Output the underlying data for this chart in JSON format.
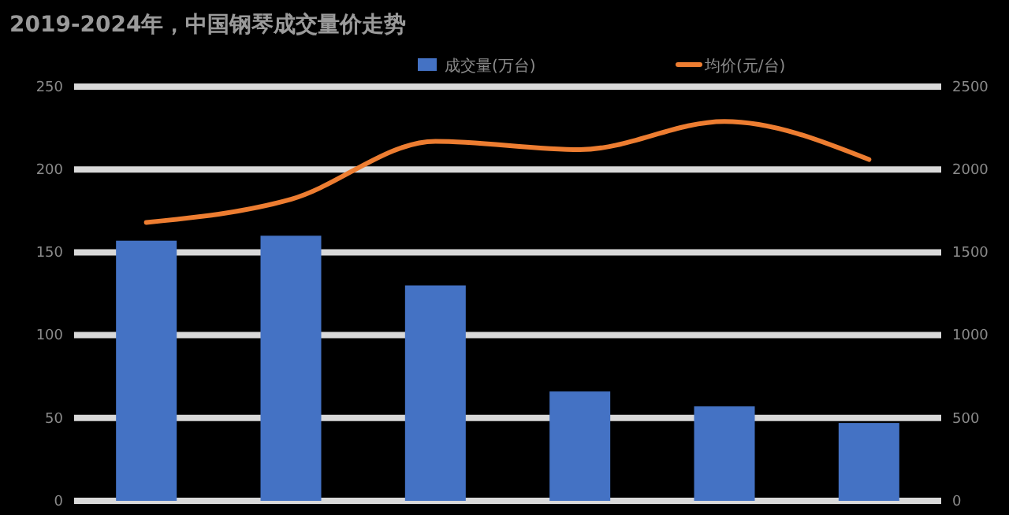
{
  "chart_data": {
    "type": "bar",
    "title": "2019-2024年，中国钢琴成交量价走势",
    "categories": [
      null,
      null,
      null,
      null,
      null,
      null
    ],
    "series": [
      {
        "name": "成交量(万台)",
        "color": "#4472c4",
        "values": [
          157,
          160,
          130,
          66,
          57,
          47
        ]
      },
      {
        "name": "均价(元/台)",
        "type": "line",
        "axis": "y2",
        "color": "#ed7d31",
        "values": [
          1680,
          1820,
          2170,
          2120,
          2290,
          2060
        ]
      }
    ],
    "ylim": [
      0,
      250
    ],
    "yticks": [
      0,
      50,
      100,
      150,
      200,
      250
    ],
    "y2lim": [
      0,
      2500
    ],
    "y2ticks": [
      0,
      500,
      1000,
      1500,
      2000,
      2500
    ],
    "grid": "y",
    "legend": "top",
    "marker": "none"
  }
}
